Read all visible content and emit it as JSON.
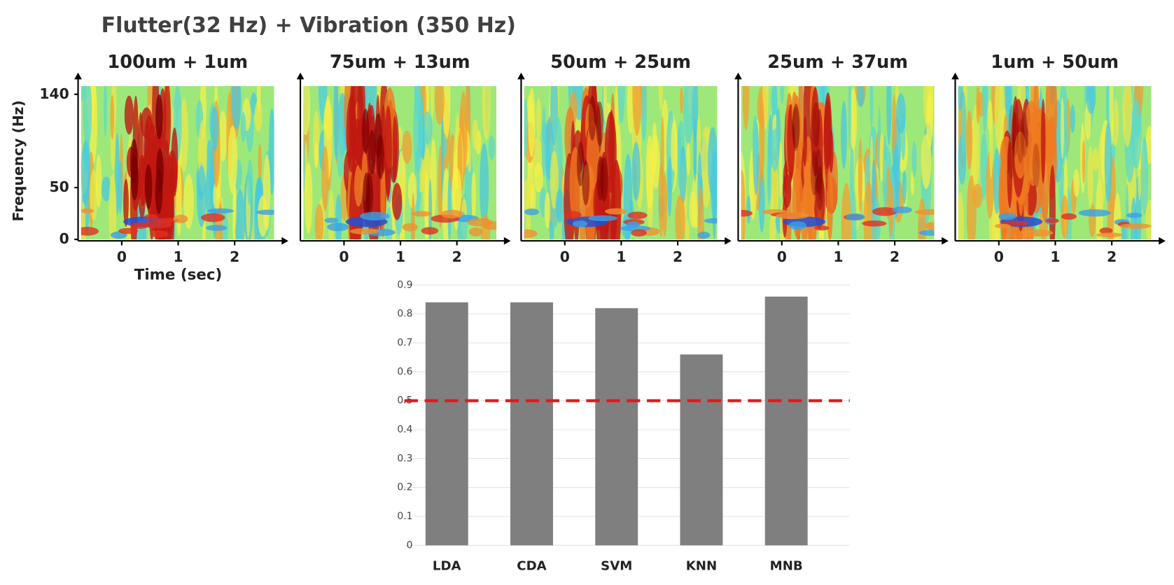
{
  "title": "Flutter(32 Hz) + Vibration (350 Hz)",
  "chart_data": [
    {
      "type": "spectrogram",
      "title": "100um + 1um",
      "xlabel": "Time (sec)",
      "ylabel": "Frequency (Hz)",
      "xlim": [
        -0.72,
        2.7
      ],
      "xticks": [
        0,
        1,
        2
      ],
      "ylim": [
        0,
        148
      ],
      "yticks": [
        0,
        50,
        140
      ]
    },
    {
      "type": "spectrogram",
      "title": "75um + 13um",
      "xlim": [
        -0.72,
        2.7
      ],
      "xticks": [
        0,
        1,
        2
      ],
      "ylim": [
        0,
        148
      ]
    },
    {
      "type": "spectrogram",
      "title": "50um + 25um",
      "xlim": [
        -0.72,
        2.7
      ],
      "xticks": [
        0,
        1,
        2
      ],
      "ylim": [
        0,
        148
      ]
    },
    {
      "type": "spectrogram",
      "title": "25um + 37um",
      "xlim": [
        -0.72,
        2.7
      ],
      "xticks": [
        0,
        1,
        2
      ],
      "ylim": [
        0,
        148
      ]
    },
    {
      "type": "spectrogram",
      "title": "1um + 50um",
      "xlim": [
        -0.72,
        2.7
      ],
      "xticks": [
        0,
        1,
        2
      ],
      "ylim": [
        0,
        148
      ]
    },
    {
      "type": "bar",
      "categories": [
        "LDA",
        "CDA",
        "SVM",
        "KNN",
        "MNB"
      ],
      "values": [
        0.84,
        0.84,
        0.82,
        0.66,
        0.86
      ],
      "color": "#7f7f7f",
      "ylim": [
        0,
        0.9
      ],
      "yticks": [
        0,
        0.1,
        0.2,
        0.3,
        0.4,
        0.5,
        0.6,
        0.7,
        0.8,
        0.9
      ],
      "grid": true,
      "reference_line": {
        "value": 0.5,
        "color": "#e8161b"
      }
    }
  ]
}
